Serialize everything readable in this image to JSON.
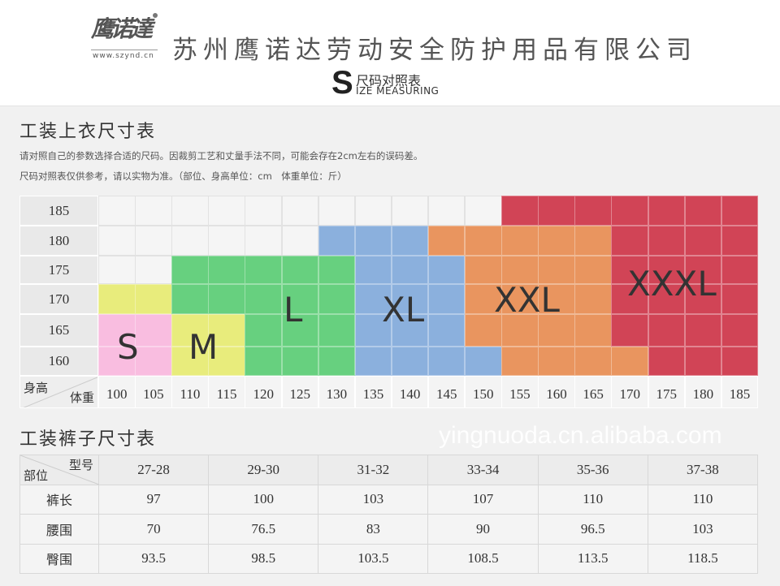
{
  "header": {
    "logo_text": "鹰诺達",
    "logo_url": "www.szynd.cn",
    "company_name": "苏州鹰诺达劳动安全防护用品有限公司",
    "badge_letter": "S",
    "badge_cn": "尺码对照表",
    "badge_en": "IZE MEASURING"
  },
  "shirt": {
    "title": "工装上衣尺寸表",
    "note1": "请对照自己的参数选择合适的尺码。因裁剪工艺和丈量手法不同，可能会存在2cm左右的误码差。",
    "note2": "尺码对照表仅供参考，请以实物为准。（部位、身高单位：cm　体重单位：斤）",
    "corner_top": "身高",
    "corner_bottom": "体重",
    "size_colors": {
      "S": "#f9bde0",
      "M": "#e8ec7c",
      "L": "#67d07f",
      "XL": "#8bb0dd",
      "XXL": "#e9955f",
      "XXXL": "#d14456"
    },
    "weights": [
      "100",
      "105",
      "110",
      "115",
      "120",
      "125",
      "130",
      "135",
      "140",
      "145",
      "150",
      "155",
      "160",
      "165",
      "170",
      "175",
      "180",
      "185"
    ],
    "rows": [
      {
        "height": "185",
        "cells": [
          "",
          "",
          "",
          "",
          "",
          "",
          "",
          "",
          "",
          "",
          "",
          "XXXL",
          "XXXL",
          "XXXL",
          "XXXL",
          "XXXL",
          "XXXL",
          "XXXL"
        ]
      },
      {
        "height": "180",
        "cells": [
          "",
          "",
          "",
          "",
          "",
          "",
          "XL",
          "XL",
          "XL",
          "XXL",
          "XXL",
          "XXL",
          "XXL",
          "XXL",
          "XXXL",
          "XXXL",
          "XXXL",
          "XXXL"
        ]
      },
      {
        "height": "175",
        "cells": [
          "",
          "",
          "L",
          "L",
          "L",
          "L",
          "L",
          "XL",
          "XL",
          "XL",
          "XXL",
          "XXL",
          "XXL",
          "XXL",
          "XXXL",
          "XXXL",
          "XXXL",
          "XXXL"
        ]
      },
      {
        "height": "170",
        "cells": [
          "M",
          "M",
          "L",
          "L",
          "L",
          "L",
          "L",
          "XL",
          "XL",
          "XL",
          "XXL",
          "XXL",
          "XXL",
          "XXL",
          "XXXL",
          "XXXL",
          "XXXL",
          "XXXL"
        ]
      },
      {
        "height": "165",
        "cells": [
          "S",
          "S",
          "M",
          "M",
          "L",
          "L",
          "L",
          "XL",
          "XL",
          "XL",
          "XXL",
          "XXL",
          "XXL",
          "XXL",
          "XXXL",
          "XXXL",
          "XXXL",
          "XXXL"
        ]
      },
      {
        "height": "160",
        "cells": [
          "S",
          "S",
          "M",
          "M",
          "L",
          "L",
          "L",
          "XL",
          "XL",
          "XL",
          "XL",
          "XXL",
          "XXL",
          "XXL",
          "XXL",
          "XXXL",
          "XXXL",
          "XXXL"
        ]
      }
    ],
    "size_labels": [
      "S",
      "M",
      "L",
      "XL",
      "XXL",
      "XXXL"
    ]
  },
  "pants": {
    "title": "工装裤子尺寸表",
    "corner_top": "型号",
    "corner_bottom": "部位",
    "sizes": [
      "27-28",
      "29-30",
      "31-32",
      "33-34",
      "35-36",
      "37-38"
    ],
    "rows": [
      {
        "label": "裤长",
        "values": [
          "97",
          "100",
          "103",
          "107",
          "110",
          "110"
        ]
      },
      {
        "label": "腰围",
        "values": [
          "70",
          "76.5",
          "83",
          "90",
          "96.5",
          "103"
        ]
      },
      {
        "label": "臀围",
        "values": [
          "93.5",
          "98.5",
          "103.5",
          "108.5",
          "113.5",
          "118.5"
        ]
      }
    ]
  },
  "watermark": "yingnuoda.cn.alibaba.com"
}
